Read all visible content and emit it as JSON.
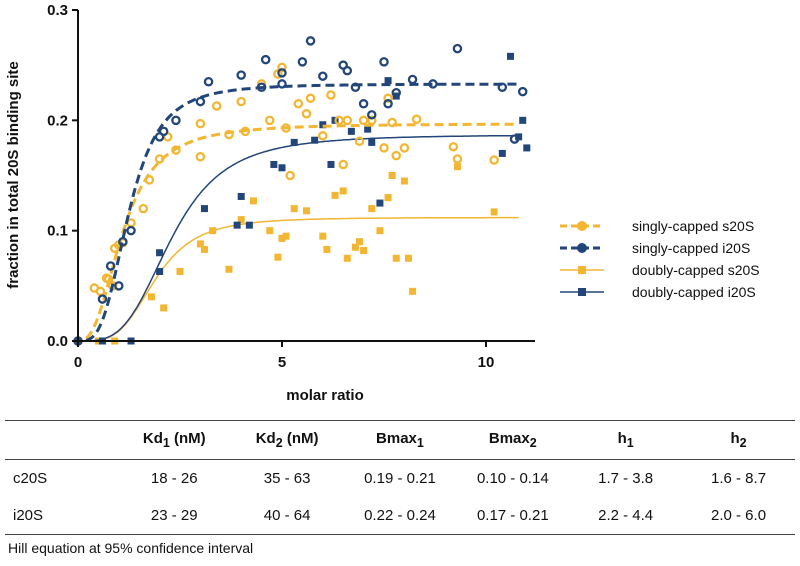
{
  "colors": {
    "s20S": "#f2b632",
    "i20S": "#22457a",
    "axis": "#111111"
  },
  "chart_data": {
    "type": "scatter",
    "xlabel": "molar ratio",
    "ylabel": "fraction in total 20S binding site",
    "xlim": [
      0,
      11.5
    ],
    "ylim": [
      0,
      0.3
    ],
    "xticks": [
      0,
      5,
      10
    ],
    "yticks": [
      0.0,
      0.1,
      0.2,
      0.3
    ],
    "xtick_labels": [
      "0",
      "5",
      "10"
    ],
    "ytick_labels": [
      "0.0",
      "0.1",
      "0.2",
      "0.3"
    ],
    "legend_position": "right",
    "series": [
      {
        "name": "singly-capped s20S",
        "marker": "open-circle",
        "line": "dashed",
        "color": "#f2b632",
        "fit": {
          "bmax": 0.197,
          "kd": 1.1,
          "h": 2.6
        },
        "points": [
          [
            0,
            0
          ],
          [
            0.4,
            0.048
          ],
          [
            0.55,
            0.045
          ],
          [
            0.7,
            0.057
          ],
          [
            0.75,
            0.056
          ],
          [
            0.85,
            0.05
          ],
          [
            0.9,
            0.084
          ],
          [
            1.0,
            0.087
          ],
          [
            1.1,
            0.089
          ],
          [
            1.3,
            0.107
          ],
          [
            1.6,
            0.12
          ],
          [
            2.0,
            0.165
          ],
          [
            1.75,
            0.146
          ],
          [
            2.2,
            0.185
          ],
          [
            2.4,
            0.173
          ],
          [
            3.0,
            0.167
          ],
          [
            3.0,
            0.197
          ],
          [
            3.4,
            0.213
          ],
          [
            3.7,
            0.187
          ],
          [
            4.0,
            0.217
          ],
          [
            4.1,
            0.19
          ],
          [
            4.5,
            0.233
          ],
          [
            4.7,
            0.2
          ],
          [
            4.9,
            0.242
          ],
          [
            5.0,
            0.248
          ],
          [
            5.1,
            0.193
          ],
          [
            5.2,
            0.15
          ],
          [
            5.4,
            0.215
          ],
          [
            5.6,
            0.206
          ],
          [
            5.7,
            0.22
          ],
          [
            6.0,
            0.186
          ],
          [
            6.2,
            0.223
          ],
          [
            6.4,
            0.2
          ],
          [
            6.5,
            0.16
          ],
          [
            6.6,
            0.2
          ],
          [
            6.9,
            0.181
          ],
          [
            7.0,
            0.2
          ],
          [
            7.2,
            0.2
          ],
          [
            7.5,
            0.175
          ],
          [
            7.6,
            0.22
          ],
          [
            7.7,
            0.198
          ],
          [
            7.8,
            0.168
          ],
          [
            8.0,
            0.175
          ],
          [
            8.3,
            0.201
          ],
          [
            9.2,
            0.176
          ],
          [
            9.3,
            0.165
          ],
          [
            10.2,
            0.164
          ]
        ]
      },
      {
        "name": "singly-capped i20S",
        "marker": "open-circle",
        "line": "dashed",
        "color": "#22457a",
        "fit": {
          "bmax": 0.233,
          "kd": 1.25,
          "h": 3.3
        },
        "points": [
          [
            0,
            0
          ],
          [
            0.6,
            0.038
          ],
          [
            0.8,
            0.068
          ],
          [
            1.0,
            0.05
          ],
          [
            1.1,
            0.09
          ],
          [
            1.3,
            0.1
          ],
          [
            2.0,
            0.185
          ],
          [
            2.1,
            0.19
          ],
          [
            2.4,
            0.2
          ],
          [
            3.0,
            0.217
          ],
          [
            3.2,
            0.235
          ],
          [
            4.0,
            0.241
          ],
          [
            4.5,
            0.23
          ],
          [
            4.6,
            0.255
          ],
          [
            5.0,
            0.243
          ],
          [
            5.0,
            0.233
          ],
          [
            5.5,
            0.253
          ],
          [
            5.7,
            0.272
          ],
          [
            6.0,
            0.24
          ],
          [
            6.5,
            0.25
          ],
          [
            6.6,
            0.245
          ],
          [
            6.8,
            0.23
          ],
          [
            7.0,
            0.215
          ],
          [
            7.2,
            0.205
          ],
          [
            7.5,
            0.253
          ],
          [
            7.6,
            0.215
          ],
          [
            7.8,
            0.225
          ],
          [
            8.2,
            0.237
          ],
          [
            8.7,
            0.233
          ],
          [
            9.3,
            0.265
          ],
          [
            10.4,
            0.23
          ],
          [
            10.7,
            0.183
          ],
          [
            10.9,
            0.226
          ]
        ]
      },
      {
        "name": "doubly-capped s20S",
        "marker": "filled-square",
        "line": "solid",
        "color": "#f2b632",
        "fit": {
          "bmax": 0.112,
          "kd": 1.9,
          "h": 3.8
        },
        "points": [
          [
            0,
            0
          ],
          [
            0.5,
            0
          ],
          [
            0.9,
            0
          ],
          [
            1.8,
            0.04
          ],
          [
            2.1,
            0.03
          ],
          [
            2.5,
            0.063
          ],
          [
            3.0,
            0.088
          ],
          [
            3.1,
            0.083
          ],
          [
            3.3,
            0.1
          ],
          [
            3.7,
            0.065
          ],
          [
            4.0,
            0.11
          ],
          [
            4.3,
            0.127
          ],
          [
            4.7,
            0.1
          ],
          [
            4.9,
            0.076
          ],
          [
            5.0,
            0.093
          ],
          [
            5.1,
            0.095
          ],
          [
            5.3,
            0.12
          ],
          [
            5.6,
            0.118
          ],
          [
            6.0,
            0.095
          ],
          [
            6.1,
            0.083
          ],
          [
            6.3,
            0.132
          ],
          [
            6.5,
            0.136
          ],
          [
            6.6,
            0.075
          ],
          [
            6.8,
            0.085
          ],
          [
            6.9,
            0.09
          ],
          [
            7.0,
            0.082
          ],
          [
            7.2,
            0.12
          ],
          [
            7.4,
            0.1
          ],
          [
            7.6,
            0.13
          ],
          [
            7.7,
            0.15
          ],
          [
            7.8,
            0.075
          ],
          [
            8.0,
            0.145
          ],
          [
            8.1,
            0.075
          ],
          [
            8.2,
            0.045
          ],
          [
            9.3,
            0.158
          ],
          [
            10.2,
            0.117
          ]
        ]
      },
      {
        "name": "doubly-capped i20S",
        "marker": "filled-square",
        "line": "solid",
        "color": "#22457a",
        "fit": {
          "bmax": 0.187,
          "kd": 2.3,
          "h": 3.5
        },
        "points": [
          [
            0,
            0
          ],
          [
            0.6,
            0
          ],
          [
            1.3,
            0
          ],
          [
            2.0,
            0.063
          ],
          [
            2.0,
            0.08
          ],
          [
            3.1,
            0.12
          ],
          [
            3.9,
            0.105
          ],
          [
            4.0,
            0.131
          ],
          [
            4.2,
            0.105
          ],
          [
            4.8,
            0.16
          ],
          [
            5.0,
            0.157
          ],
          [
            5.3,
            0.18
          ],
          [
            5.8,
            0.182
          ],
          [
            6.0,
            0.196
          ],
          [
            6.2,
            0.16
          ],
          [
            6.3,
            0.2
          ],
          [
            6.7,
            0.19
          ],
          [
            7.1,
            0.192
          ],
          [
            7.2,
            0.18
          ],
          [
            7.4,
            0.125
          ],
          [
            7.6,
            0.236
          ],
          [
            7.8,
            0.222
          ],
          [
            10.4,
            0.17
          ],
          [
            10.6,
            0.258
          ],
          [
            10.8,
            0.185
          ],
          [
            10.9,
            0.2
          ],
          [
            11.0,
            0.175
          ]
        ]
      }
    ]
  },
  "table": {
    "headers": [
      {
        "base": "",
        "sub": "",
        "suffix": ""
      },
      {
        "base": "Kd",
        "sub": "1",
        "suffix": " (nM)"
      },
      {
        "base": "Kd",
        "sub": "2",
        "suffix": " (nM)"
      },
      {
        "base": "Bmax",
        "sub": "1",
        "suffix": ""
      },
      {
        "base": "Bmax",
        "sub": "2",
        "suffix": ""
      },
      {
        "base": "h",
        "sub": "1",
        "suffix": ""
      },
      {
        "base": "h",
        "sub": "2",
        "suffix": ""
      }
    ],
    "rows": [
      [
        "c20S",
        "18 - 26",
        "35 - 63",
        "0.19 - 0.21",
        "0.10 - 0.14",
        "1.7 - 3.8",
        "1.6 - 8.7"
      ],
      [
        "i20S",
        "23 - 29",
        "40 - 64",
        "0.22 - 0.24",
        "0.17 - 0.21",
        "2.2 - 4.4",
        "2.0 - 6.0"
      ]
    ]
  },
  "footnote": "Hill equation at 95% confidence interval"
}
